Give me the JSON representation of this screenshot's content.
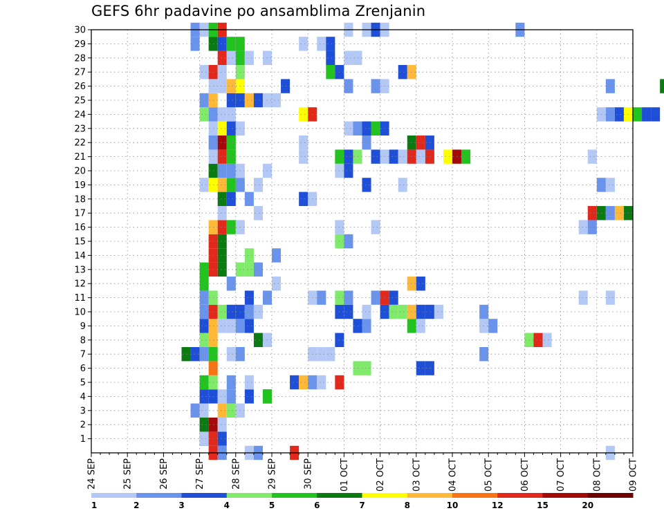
{
  "chart_data": {
    "type": "heatmap",
    "title": "GEFS 6hr padavine po ansamblima Zrenjanin",
    "xlabel": "",
    "ylabel": "",
    "grid": true,
    "legend_placement": "bottom",
    "x_tick_labels": [
      "24 SEP",
      "25 SEP",
      "26 SEP",
      "27 SEP",
      "28 SEP",
      "29 SEP",
      "30 SEP",
      "01 OCT",
      "02 OCT",
      "03 OCT",
      "04 OCT",
      "05 OCT",
      "06 OCT",
      "07 OCT",
      "08 OCT",
      "09 OCT"
    ],
    "y_tick_labels": [
      "1",
      "2",
      "3",
      "4",
      "5",
      "6",
      "7",
      "8",
      "9",
      "10",
      "11",
      "12",
      "13",
      "14",
      "15",
      "16",
      "17",
      "18",
      "19",
      "20",
      "21",
      "22",
      "23",
      "24",
      "25",
      "26",
      "27",
      "28",
      "29",
      "30"
    ],
    "x_range_days": [
      0,
      15
    ],
    "y_range": [
      0,
      30
    ],
    "color_scale": {
      "levels": [
        "1",
        "2",
        "3",
        "4",
        "5",
        "6",
        "7",
        "8",
        "10",
        "12",
        "15",
        "20"
      ],
      "colors": [
        "#b3c8f5",
        "#6a93ec",
        "#1f4fd6",
        "#80ea6a",
        "#22c31f",
        "#0b7a12",
        "#ffff00",
        "#ffb838",
        "#f97312",
        "#e0291b",
        "#a30a0a",
        "#6f0000"
      ]
    },
    "cells": [
      [
        0,
        27.0,
        3.0
      ],
      [
        0,
        27.0,
        1.5
      ],
      [
        0,
        27.25,
        13.0
      ],
      [
        0,
        27.5,
        3.5
      ],
      [
        1,
        27.0,
        6.5
      ],
      [
        1,
        27.25,
        16.0
      ],
      [
        1,
        27.5,
        1.5
      ],
      [
        2,
        26.75,
        2.5
      ],
      [
        2,
        27.0,
        1.5
      ],
      [
        2,
        27.5,
        9.0
      ],
      [
        2,
        27.75,
        4.5
      ],
      [
        2,
        28.0,
        1.5
      ],
      [
        3,
        27.0,
        3.5
      ],
      [
        3,
        27.25,
        3.5
      ],
      [
        3,
        27.5,
        1.5
      ],
      [
        3,
        27.75,
        2.5
      ],
      [
        3,
        28.25,
        3.5
      ],
      [
        3,
        28.75,
        3.5
      ],
      [
        3,
        28.75,
        5.5
      ],
      [
        4,
        27.0,
        5.5
      ],
      [
        4,
        27.25,
        4.5
      ],
      [
        4,
        27.75,
        2.5
      ],
      [
        4,
        28.25,
        1.5
      ],
      [
        4,
        29.5,
        3.5
      ],
      [
        4,
        29.75,
        9.0
      ],
      [
        4,
        30.0,
        2.5
      ],
      [
        4,
        30.25,
        1.5
      ],
      [
        4,
        30.75,
        12.0
      ],
      [
        5,
        27.25,
        10.0
      ],
      [
        5,
        31.25,
        4.5
      ],
      [
        5,
        31.5,
        4.5
      ],
      [
        5,
        33.0,
        3.5
      ],
      [
        5,
        33.25,
        3.5
      ],
      [
        6,
        26.5,
        6.5
      ],
      [
        6,
        26.75,
        3.5
      ],
      [
        6,
        27.0,
        2.5
      ],
      [
        6,
        27.25,
        5.5
      ],
      [
        6,
        27.75,
        1.5
      ],
      [
        6,
        28.0,
        2.5
      ],
      [
        6,
        30.0,
        1.5
      ],
      [
        6,
        30.25,
        1.5
      ],
      [
        6,
        30.5,
        1.5
      ],
      [
        6,
        34.75,
        2.5
      ],
      [
        7,
        27.0,
        4.5
      ],
      [
        7,
        27.25,
        9.0
      ],
      [
        7,
        28.5,
        6.5
      ],
      [
        7,
        28.75,
        1.5
      ],
      [
        7,
        30.75,
        3.5
      ],
      [
        7,
        36.0,
        4.5
      ],
      [
        7,
        36.25,
        12.0
      ],
      [
        7,
        36.5,
        1.5
      ],
      [
        8,
        27.0,
        3.5
      ],
      [
        8,
        27.25,
        9.0
      ],
      [
        8,
        27.5,
        1.5
      ],
      [
        8,
        27.75,
        1.5
      ],
      [
        8,
        28.0,
        2.5
      ],
      [
        8,
        28.25,
        3.5
      ],
      [
        8,
        31.25,
        3.5
      ],
      [
        8,
        31.5,
        2.5
      ],
      [
        8,
        32.75,
        5.5
      ],
      [
        8,
        33.0,
        1.5
      ],
      [
        8,
        34.75,
        1.5
      ],
      [
        8,
        35.0,
        2.5
      ],
      [
        9,
        27.0,
        2.5
      ],
      [
        9,
        27.25,
        12.0
      ],
      [
        9,
        27.5,
        4.5
      ],
      [
        9,
        27.75,
        3.5
      ],
      [
        9,
        28.0,
        3.5
      ],
      [
        9,
        28.25,
        2.5
      ],
      [
        9,
        28.5,
        1.5
      ],
      [
        9,
        30.75,
        3.5
      ],
      [
        9,
        31.0,
        3.5
      ],
      [
        9,
        31.5,
        1.5
      ],
      [
        9,
        32.0,
        3.5
      ],
      [
        9,
        32.25,
        4.5
      ],
      [
        9,
        32.5,
        4.5
      ],
      [
        9,
        32.75,
        9.0
      ],
      [
        9,
        33.0,
        3.5
      ],
      [
        9,
        33.25,
        3.5
      ],
      [
        9,
        33.5,
        1.5
      ],
      [
        9,
        34.75,
        2.5
      ],
      [
        10,
        27.0,
        2.5
      ],
      [
        10,
        27.25,
        4.5
      ],
      [
        10,
        28.25,
        3.5
      ],
      [
        10,
        28.75,
        2.5
      ],
      [
        10,
        30.0,
        1.5
      ],
      [
        10,
        30.25,
        2.5
      ],
      [
        10,
        30.75,
        4.5
      ],
      [
        10,
        31.0,
        2.5
      ],
      [
        10,
        31.75,
        2.5
      ],
      [
        10,
        32.0,
        12.0
      ],
      [
        10,
        32.25,
        3.5
      ],
      [
        10,
        37.5,
        1.5
      ],
      [
        10,
        38.25,
        1.5
      ],
      [
        11,
        27.0,
        5.5
      ],
      [
        11,
        27.75,
        2.5
      ],
      [
        11,
        29.0,
        1.5
      ],
      [
        11,
        32.75,
        9.0
      ],
      [
        11,
        33.0,
        3.5
      ],
      [
        12,
        27.0,
        5.5
      ],
      [
        12,
        27.25,
        12.0
      ],
      [
        12,
        27.5,
        6.5
      ],
      [
        12,
        28.0,
        4.5
      ],
      [
        12,
        28.25,
        4.5
      ],
      [
        12,
        28.5,
        2.5
      ],
      [
        13,
        27.25,
        12.0
      ],
      [
        13,
        27.5,
        6.5
      ],
      [
        13,
        28.25,
        4.5
      ],
      [
        13,
        29.0,
        2.5
      ],
      [
        14,
        27.25,
        12.0
      ],
      [
        14,
        27.5,
        6.5
      ],
      [
        14,
        30.75,
        4.5
      ],
      [
        14,
        31.0,
        2.5
      ],
      [
        15,
        27.25,
        9.0
      ],
      [
        15,
        27.5,
        13.0
      ],
      [
        15,
        27.75,
        5.5
      ],
      [
        15,
        28.0,
        1.5
      ],
      [
        15,
        30.75,
        1.5
      ],
      [
        15,
        31.75,
        1.5
      ],
      [
        15,
        37.5,
        1.5
      ],
      [
        15,
        37.75,
        2.5
      ],
      [
        16,
        27.5,
        1.5
      ],
      [
        16,
        28.5,
        1.5
      ],
      [
        16,
        37.75,
        12.0
      ],
      [
        16,
        38.0,
        6.5
      ],
      [
        16,
        38.25,
        2.5
      ],
      [
        16,
        38.5,
        9.0
      ],
      [
        16,
        38.75,
        6.5
      ],
      [
        17,
        27.5,
        6.5
      ],
      [
        17,
        27.75,
        3.5
      ],
      [
        17,
        28.25,
        2.5
      ],
      [
        17,
        29.75,
        3.5
      ],
      [
        17,
        30.0,
        1.5
      ],
      [
        18,
        27.0,
        1.5
      ],
      [
        18,
        27.25,
        7.5
      ],
      [
        18,
        27.5,
        9.0
      ],
      [
        18,
        27.75,
        5.5
      ],
      [
        18,
        28.0,
        2.5
      ],
      [
        18,
        28.5,
        1.5
      ],
      [
        18,
        31.5,
        3.5
      ],
      [
        18,
        32.5,
        1.5
      ],
      [
        18,
        38.0,
        2.5
      ],
      [
        18,
        38.25,
        1.5
      ],
      [
        19,
        27.25,
        6.5
      ],
      [
        19,
        27.5,
        2.5
      ],
      [
        19,
        27.75,
        2.5
      ],
      [
        19,
        28.0,
        1.5
      ],
      [
        19,
        28.75,
        1.5
      ],
      [
        19,
        30.75,
        1.5
      ],
      [
        19,
        31.0,
        3.5
      ],
      [
        20,
        27.25,
        1.5
      ],
      [
        20,
        27.5,
        13.0
      ],
      [
        20,
        27.75,
        5.5
      ],
      [
        20,
        29.75,
        1.5
      ],
      [
        20,
        30.75,
        5.5
      ],
      [
        20,
        31.0,
        3.5
      ],
      [
        20,
        31.25,
        4.5
      ],
      [
        20,
        31.75,
        3.5
      ],
      [
        20,
        32.0,
        1.5
      ],
      [
        20,
        32.25,
        3.5
      ],
      [
        20,
        32.5,
        1.5
      ],
      [
        20,
        32.75,
        13.0
      ],
      [
        20,
        33.0,
        1.5
      ],
      [
        20,
        33.25,
        13.0
      ],
      [
        20,
        33.75,
        7.5
      ],
      [
        20,
        34.0,
        16.0
      ],
      [
        20,
        34.25,
        5.5
      ],
      [
        20,
        37.75,
        1.5
      ],
      [
        21,
        27.25,
        2.5
      ],
      [
        21,
        27.5,
        16.0
      ],
      [
        21,
        27.75,
        5.5
      ],
      [
        21,
        29.75,
        1.5
      ],
      [
        21,
        31.5,
        2.5
      ],
      [
        21,
        32.75,
        6.5
      ],
      [
        21,
        33.0,
        12.0
      ],
      [
        21,
        33.25,
        3.5
      ],
      [
        22,
        27.25,
        1.5
      ],
      [
        22,
        27.5,
        7.5
      ],
      [
        22,
        27.75,
        3.5
      ],
      [
        22,
        28.0,
        1.5
      ],
      [
        22,
        31.0,
        1.5
      ],
      [
        22,
        31.25,
        2.5
      ],
      [
        22,
        31.5,
        3.5
      ],
      [
        22,
        31.75,
        5.5
      ],
      [
        22,
        32.0,
        3.5
      ],
      [
        23,
        27.0,
        4.5
      ],
      [
        23,
        27.25,
        2.5
      ],
      [
        23,
        27.5,
        1.5
      ],
      [
        23,
        27.75,
        1.5
      ],
      [
        23,
        29.75,
        7.5
      ],
      [
        23,
        30.0,
        13.0
      ],
      [
        23,
        38.0,
        1.5
      ],
      [
        23,
        38.25,
        2.5
      ],
      [
        23,
        38.5,
        3.5
      ],
      [
        23,
        38.75,
        7.5
      ],
      [
        23,
        39.0,
        5.5
      ],
      [
        23,
        39.25,
        3.5
      ],
      [
        23,
        39.5,
        3.5
      ],
      [
        24,
        27.0,
        2.5
      ],
      [
        24,
        27.25,
        9.0
      ],
      [
        24,
        27.75,
        3.5
      ],
      [
        24,
        28.0,
        3.5
      ],
      [
        24,
        28.25,
        9.0
      ],
      [
        24,
        28.5,
        3.5
      ],
      [
        24,
        28.75,
        1.5
      ],
      [
        24,
        29.0,
        1.5
      ],
      [
        25,
        27.25,
        1.5
      ],
      [
        25,
        27.5,
        1.5
      ],
      [
        25,
        27.75,
        9.0
      ],
      [
        25,
        28.0,
        7.5
      ],
      [
        25,
        29.25,
        3.5
      ],
      [
        25,
        31.0,
        2.5
      ],
      [
        25,
        31.75,
        2.5
      ],
      [
        25,
        32.0,
        1.5
      ],
      [
        25,
        38.25,
        2.5
      ],
      [
        25,
        39.75,
        6.5
      ],
      [
        26,
        27.0,
        1.5
      ],
      [
        26,
        27.25,
        13.0
      ],
      [
        26,
        27.5,
        1.5
      ],
      [
        26,
        28.0,
        4.5
      ],
      [
        26,
        30.5,
        5.5
      ],
      [
        26,
        30.75,
        3.5
      ],
      [
        26,
        32.5,
        3.5
      ],
      [
        26,
        32.75,
        9.0
      ],
      [
        27,
        27.5,
        13.0
      ],
      [
        27,
        27.75,
        1.5
      ],
      [
        27,
        28.0,
        5.5
      ],
      [
        27,
        28.25,
        1.5
      ],
      [
        27,
        28.75,
        1.5
      ],
      [
        27,
        30.5,
        3.5
      ],
      [
        27,
        31.0,
        1.5
      ],
      [
        27,
        31.25,
        1.5
      ],
      [
        28,
        26.75,
        2.5
      ],
      [
        28,
        27.25,
        6.5
      ],
      [
        28,
        27.5,
        3.5
      ],
      [
        28,
        27.75,
        5.5
      ],
      [
        28,
        28.0,
        5.5
      ],
      [
        28,
        29.75,
        1.5
      ],
      [
        28,
        30.25,
        1.5
      ],
      [
        28,
        30.5,
        3.5
      ],
      [
        29,
        26.75,
        2.5
      ],
      [
        29,
        27.0,
        1.5
      ],
      [
        29,
        27.25,
        5.5
      ],
      [
        29,
        27.5,
        13.0
      ],
      [
        29,
        31.0,
        1.5
      ],
      [
        29,
        31.5,
        1.5
      ],
      [
        29,
        31.75,
        3.5
      ],
      [
        29,
        32.0,
        1.5
      ],
      [
        29,
        35.75,
        2.5
      ],
      [
        -1,
        27.25,
        13.0
      ],
      [
        -1,
        27.5,
        2.5
      ],
      [
        -1,
        28.25,
        1.5
      ],
      [
        -1,
        28.5,
        2.5
      ],
      [
        -1,
        29.5,
        13.0
      ],
      [
        -1,
        38.25,
        1.5
      ]
    ]
  }
}
